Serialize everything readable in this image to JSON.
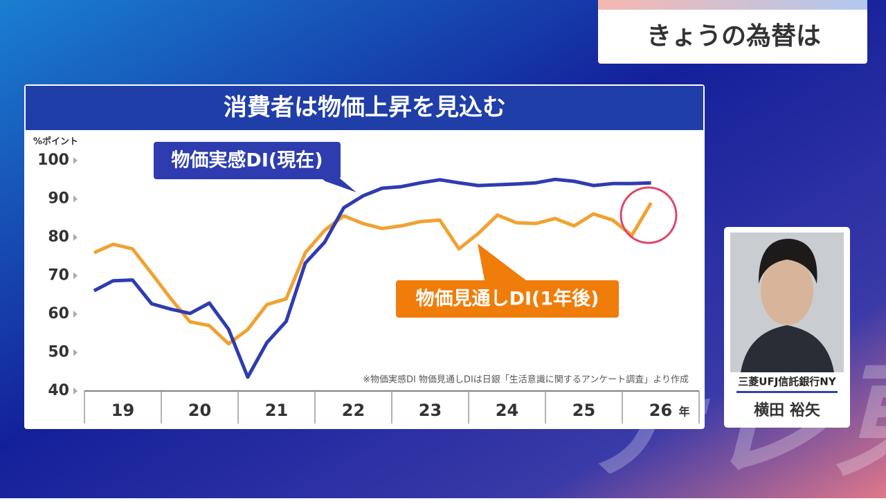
{
  "ui": {
    "banner": "きょうの為替は",
    "affiliation": "三菱UFJ信託銀行NY",
    "name": "横田 裕矢",
    "logo": "テレ東"
  },
  "chart_data": {
    "type": "line",
    "title": "消費者は物価上昇を見込む",
    "y_label": "%ポイント",
    "x_unit": "年",
    "note": "※物価実感DI 物価見通しDIは日銀「生活意識に関するアンケート調査」より作成",
    "x": [
      19.125,
      19.375,
      19.625,
      19.875,
      20.125,
      20.375,
      20.625,
      20.875,
      21.125,
      21.375,
      21.625,
      21.875,
      22.125,
      22.375,
      22.625,
      22.875,
      23.125,
      23.375,
      23.625,
      23.875,
      24.125,
      24.375,
      24.625,
      24.875,
      25.125,
      25.375,
      25.625,
      25.875,
      26.125,
      26.375
    ],
    "series": [
      {
        "name": "物価実感DI(現在)",
        "color": "#2e3cb0",
        "values": [
          66.1,
          68.7,
          68.9,
          62.7,
          61.3,
          60.2,
          62.9,
          56.1,
          43.6,
          52.6,
          58.1,
          73.3,
          78.7,
          87.7,
          90.8,
          92.8,
          93.2,
          94.2,
          95.0,
          94.2,
          93.5,
          93.7,
          93.9,
          94.2,
          95.1,
          94.6,
          93.5,
          94.0,
          94.0,
          94.2
        ]
      },
      {
        "name": "物価見通しDI(1年後)",
        "color": "#f0a232",
        "values": [
          76.0,
          78.2,
          77.0,
          70.6,
          64.0,
          58.0,
          57.0,
          52.3,
          56.0,
          62.5,
          64.0,
          76.0,
          81.8,
          85.6,
          83.6,
          82.3,
          83.0,
          84.1,
          84.5,
          77.0,
          81.0,
          85.8,
          83.8,
          83.6,
          84.9,
          83.0,
          86.1,
          84.5,
          80.5,
          89.0
        ]
      }
    ],
    "xlim": [
      19,
      27
    ],
    "xticks": [
      19,
      20,
      21,
      22,
      23,
      24,
      25,
      26
    ],
    "ylim": [
      40,
      100
    ],
    "yticks": [
      40,
      50,
      60,
      70,
      80,
      90,
      100
    ]
  }
}
